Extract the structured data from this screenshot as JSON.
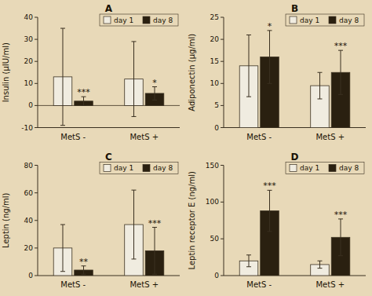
{
  "chart_data": [
    {
      "type": "bar",
      "title": "A",
      "y_label": "Insulin (μIU/ml)",
      "categories": [
        "MetS -",
        "MetS +"
      ],
      "series": [
        {
          "name": "day 1",
          "color": "#f0ece0",
          "values": [
            13,
            12
          ],
          "errors": [
            22,
            17
          ]
        },
        {
          "name": "day 8",
          "color": "#2a2010",
          "values": [
            2,
            5.5
          ],
          "errors": [
            2,
            3
          ],
          "annotations": [
            "***",
            "*"
          ]
        }
      ],
      "ylim": [
        -10,
        40
      ],
      "yticks": [
        -10,
        0,
        10,
        20,
        30,
        40
      ],
      "grid": false,
      "legend": "upper right"
    },
    {
      "type": "bar",
      "title": "B",
      "y_label": "Adiponectin (μg/ml)",
      "categories": [
        "MetS -",
        "MetS +"
      ],
      "series": [
        {
          "name": "day 1",
          "color": "#f0ece0",
          "values": [
            14,
            9.5
          ],
          "errors": [
            7,
            3
          ]
        },
        {
          "name": "day 8",
          "color": "#2a2010",
          "values": [
            16,
            12.5
          ],
          "errors": [
            6,
            5
          ],
          "annotations": [
            "*",
            "***"
          ]
        }
      ],
      "ylim": [
        0,
        25
      ],
      "yticks": [
        0,
        5,
        10,
        15,
        20,
        25
      ],
      "grid": false,
      "legend": "upper right"
    },
    {
      "type": "bar",
      "title": "C",
      "y_label": "Leptin (ng/ml)",
      "categories": [
        "MetS -",
        "MetS +"
      ],
      "series": [
        {
          "name": "day 1",
          "color": "#f0ece0",
          "values": [
            20,
            37
          ],
          "errors": [
            17,
            25
          ]
        },
        {
          "name": "day 8",
          "color": "#2a2010",
          "values": [
            4,
            18
          ],
          "errors": [
            3,
            17
          ],
          "annotations": [
            "**",
            "***"
          ]
        }
      ],
      "ylim": [
        0,
        80
      ],
      "yticks": [
        0,
        20,
        40,
        60,
        80
      ],
      "grid": false,
      "legend": "upper right"
    },
    {
      "type": "bar",
      "title": "D",
      "y_label": "Leptin receptor E (ng/ml)",
      "categories": [
        "MetS -",
        "MetS +"
      ],
      "series": [
        {
          "name": "day 1",
          "color": "#f0ece0",
          "values": [
            20,
            15
          ],
          "errors": [
            8,
            5
          ]
        },
        {
          "name": "day 8",
          "color": "#2a2010",
          "values": [
            88,
            52
          ],
          "errors": [
            28,
            25
          ],
          "annotations": [
            "***",
            "***"
          ]
        }
      ],
      "ylim": [
        0,
        150
      ],
      "yticks": [
        0,
        50,
        100,
        150
      ],
      "grid": false,
      "legend": "upper right"
    }
  ]
}
